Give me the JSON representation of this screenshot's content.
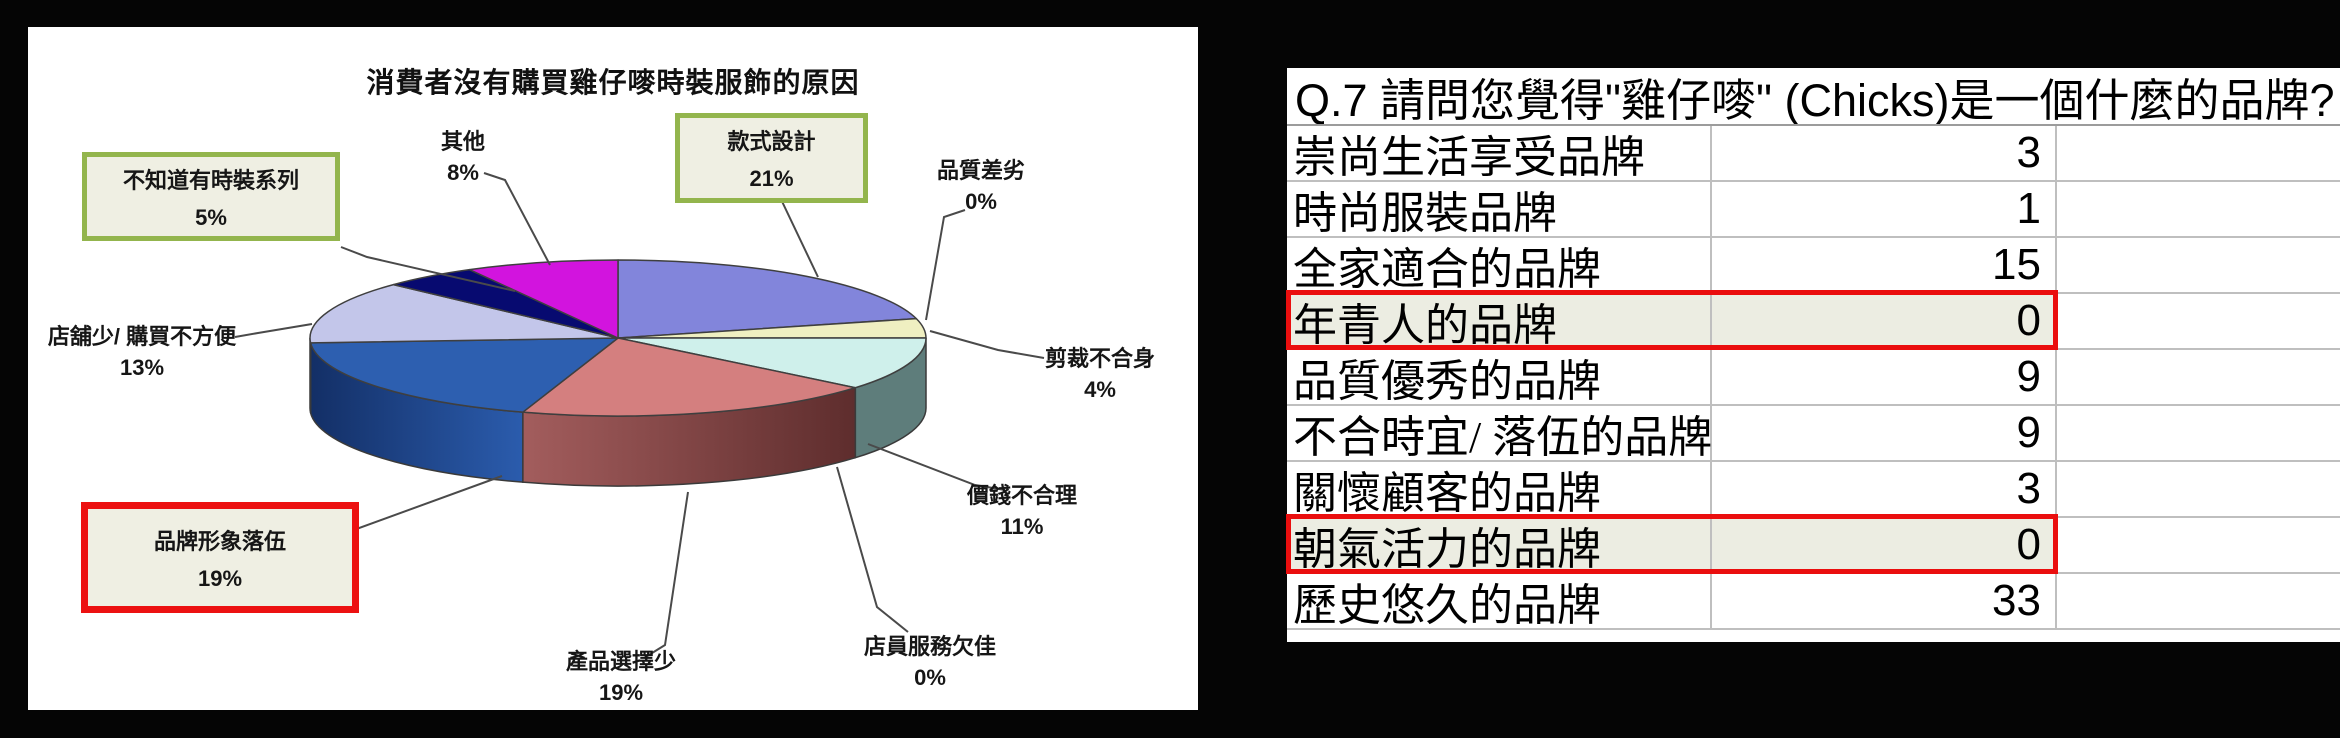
{
  "chart_data": {
    "type": "pie",
    "title": "消費者沒有購買雞仔嘜時裝服飾的原因",
    "legend": "none",
    "style": "3d-pie",
    "slices": [
      {
        "label": "款式設計",
        "pct": "21%",
        "value": 21,
        "color": "#8285DB",
        "boxed": "green"
      },
      {
        "label": "品質差劣",
        "pct": "0%",
        "value": 0,
        "color": "#FFFFFF",
        "boxed": null
      },
      {
        "label": "剪裁不合身",
        "pct": "4%",
        "value": 4,
        "color": "#EFEFC1",
        "boxed": null
      },
      {
        "label": "價錢不合理",
        "pct": "11%",
        "value": 11,
        "color": "#CFF0EB",
        "boxed": null
      },
      {
        "label": "店員服務欠佳",
        "pct": "0%",
        "value": 0,
        "color": "#FFFFFF",
        "boxed": null
      },
      {
        "label": "產品選擇少",
        "pct": "19%",
        "value": 19,
        "color": "#D47F7F",
        "boxed": null
      },
      {
        "label": "品牌形象落伍",
        "pct": "19%",
        "value": 19,
        "color": "#2D5FB0",
        "boxed": "red"
      },
      {
        "label": "店舖少/ 購買不方便",
        "pct": "13%",
        "value": 13,
        "color": "#C3C6EA",
        "boxed": null
      },
      {
        "label": "不知道有時裝系列",
        "pct": "5%",
        "value": 5,
        "color": "#070A70",
        "boxed": "green"
      },
      {
        "label": "其他",
        "pct": "8%",
        "value": 8,
        "color": "#D214DE",
        "boxed": null
      }
    ]
  },
  "table": {
    "header": "Q.7 請問您覺得\"雞仔嘜\" (Chicks)是一個什麼的品牌?",
    "rows": [
      {
        "label": "崇尚生活享受品牌",
        "value": "3",
        "highlight": false
      },
      {
        "label": "時尚服裝品牌",
        "value": "1",
        "highlight": false
      },
      {
        "label": "全家適合的品牌",
        "value": "15",
        "highlight": false
      },
      {
        "label": "年青人的品牌",
        "value": "0",
        "highlight": true
      },
      {
        "label": "品質優秀的品牌",
        "value": "9",
        "highlight": false
      },
      {
        "label": "不合時宜/ 落伍的品牌",
        "value": "9",
        "highlight": false
      },
      {
        "label": "關懷顧客的品牌",
        "value": "3",
        "highlight": false
      },
      {
        "label": "朝氣活力的品牌",
        "value": "0",
        "highlight": true
      },
      {
        "label": "歷史悠久的品牌",
        "value": "33",
        "highlight": false
      }
    ]
  },
  "colors": {
    "highlight_row_bg": "#ECEDE2",
    "highlight_border_red": "#EA0E0E",
    "callout_border_green": "#93B54D",
    "callout_bg": "#EFEFE3",
    "frame": "#050505"
  }
}
